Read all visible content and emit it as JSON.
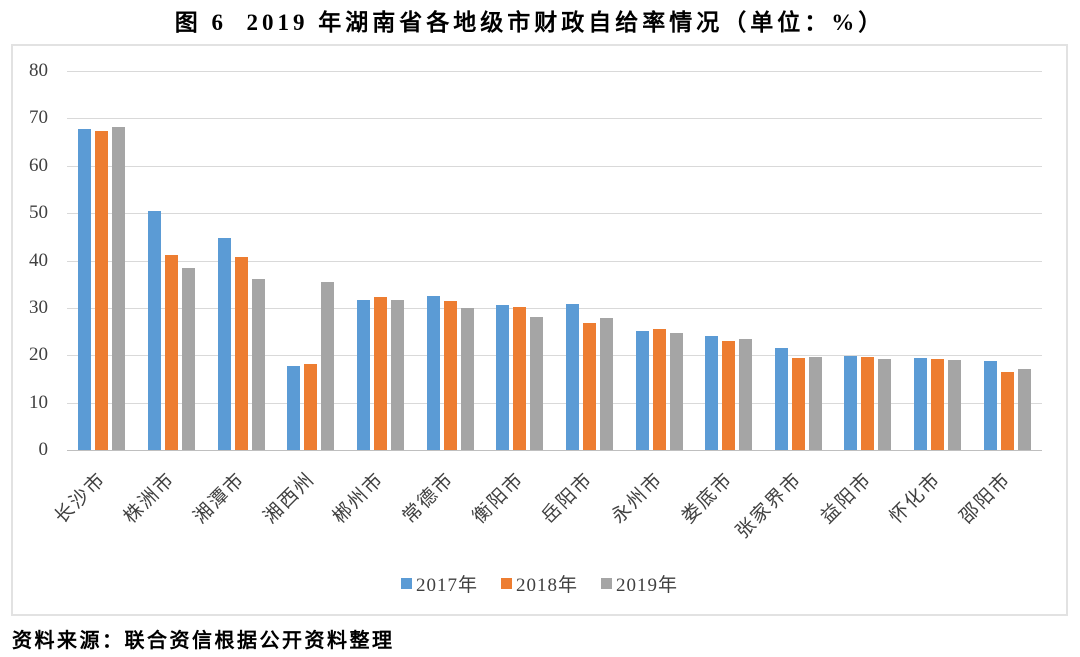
{
  "title": "图 6  2019 年湖南省各地级市财政自给率情况（单位：%）",
  "source_note": "资料来源：联合资信根据公开资料整理",
  "colors": {
    "series_2017": "#5B9BD5",
    "series_2018": "#ED7D31",
    "series_2019": "#A5A5A5",
    "gridline": "#D9D9D9",
    "axis": "#BFBFBF",
    "label": "#404040"
  },
  "chart_data": {
    "type": "bar",
    "title": "图 6  2019 年湖南省各地级市财政自给率情况（单位：%）",
    "categories": [
      "长沙市",
      "株洲市",
      "湘潭市",
      "湘西州",
      "郴州市",
      "常德市",
      "衡阳市",
      "岳阳市",
      "永州市",
      "娄底市",
      "张家界市",
      "益阳市",
      "怀化市",
      "邵阳市"
    ],
    "series": [
      {
        "name": "2017年",
        "color": "#5B9BD5",
        "values": [
          67.8,
          50.4,
          44.8,
          17.7,
          31.7,
          32.6,
          30.6,
          30.9,
          25.1,
          24.1,
          21.5,
          19.9,
          19.4,
          18.9
        ]
      },
      {
        "name": "2018年",
        "color": "#ED7D31",
        "values": [
          67.3,
          41.2,
          40.8,
          18.1,
          32.3,
          31.4,
          30.2,
          26.9,
          25.5,
          23.0,
          19.5,
          19.7,
          19.2,
          16.4
        ]
      },
      {
        "name": "2019年",
        "color": "#A5A5A5",
        "values": [
          68.2,
          38.4,
          36.2,
          35.5,
          31.6,
          30.0,
          28.1,
          27.8,
          24.8,
          23.5,
          19.7,
          19.3,
          19.1,
          17.1
        ]
      }
    ],
    "xlabel": "",
    "ylabel": "",
    "ylim": [
      0,
      80
    ],
    "ytick_step": 10,
    "grid": true,
    "legend_position": "bottom"
  }
}
